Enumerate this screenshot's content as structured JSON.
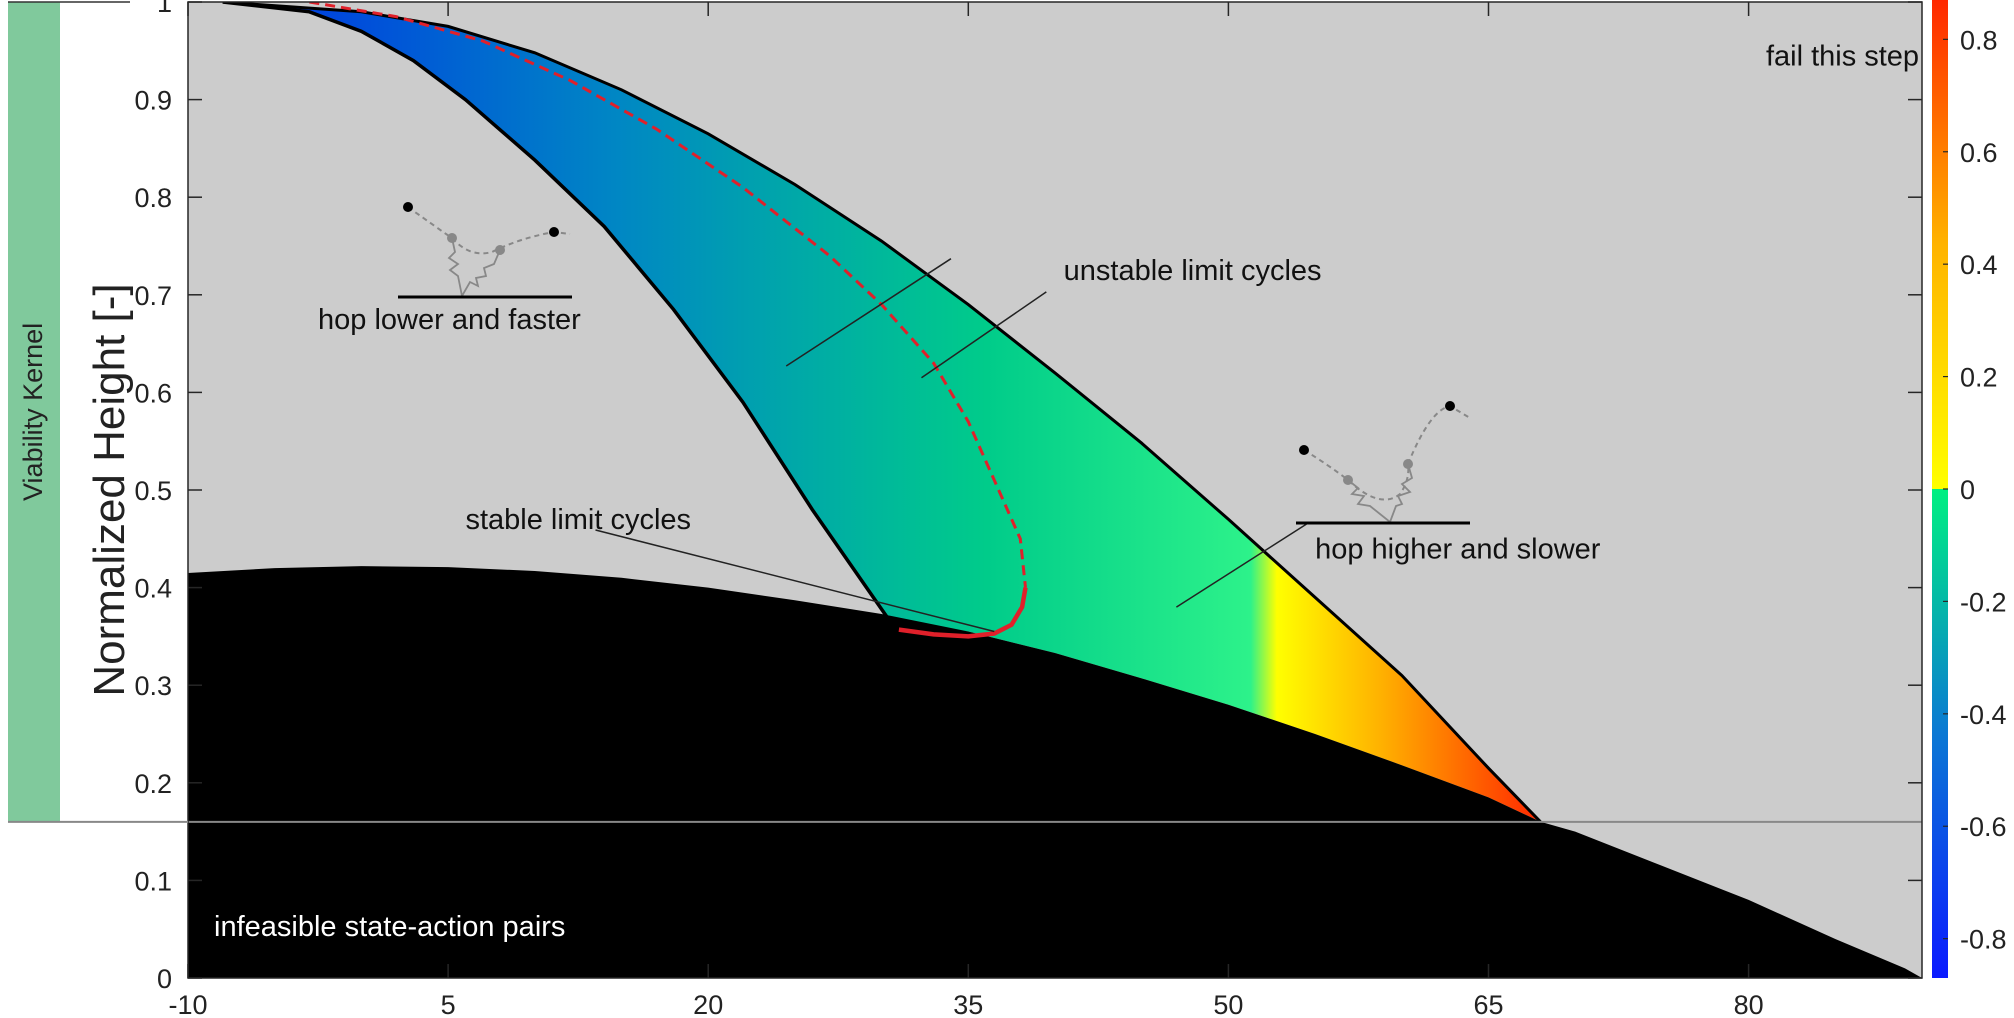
{
  "chart_data": {
    "type": "heatmap",
    "title": "",
    "xlabel": "",
    "ylabel": "Normalized Height [-]",
    "xlim": [
      -10,
      90
    ],
    "ylim": [
      0,
      1
    ],
    "x_ticks": [
      -10,
      5,
      20,
      35,
      50,
      65,
      80
    ],
    "y_ticks": [
      0,
      0.1,
      0.2,
      0.3,
      0.4,
      0.5,
      0.6,
      0.7,
      0.8,
      0.9,
      1
    ],
    "y_tick_labels": [
      "0",
      "0.1",
      "0.2",
      "0.3",
      "0.4",
      "0.5",
      "0.6",
      "0.7",
      "0.8",
      "0.9",
      "1"
    ],
    "colorbar": {
      "range": [
        -0.87,
        0.87
      ],
      "ticks": [
        0.8,
        0.6,
        0.4,
        0.2,
        0,
        -0.2,
        -0.4,
        -0.6,
        -0.8
      ],
      "tick_labels": [
        "0.8",
        "0.6",
        "0.4",
        "0.2",
        "0",
        "-0.2",
        "-0.4",
        "-0.6",
        "-0.8"
      ]
    },
    "viability_kernel": {
      "label": "Viability Kernel",
      "y_range": [
        0.16,
        1.0
      ],
      "color": "#80c99c"
    },
    "background_color": "#cccccc",
    "infeasible_color": "#000000",
    "infeasible_boundary": {
      "x": [
        -10,
        -5,
        0,
        5,
        10,
        15,
        20,
        25,
        30,
        35,
        40,
        45,
        50,
        55,
        60,
        65,
        68,
        70,
        75,
        80,
        85,
        89
      ],
      "y": [
        0.415,
        0.42,
        0.422,
        0.421,
        0.417,
        0.41,
        0.4,
        0.387,
        0.373,
        0.355,
        0.333,
        0.307,
        0.28,
        0.25,
        0.218,
        0.185,
        0.16,
        0.15,
        0.115,
        0.08,
        0.04,
        0.01
      ]
    },
    "region_upper_boundary": {
      "x": [
        -8,
        0,
        5,
        10,
        15,
        20,
        25,
        30,
        35,
        40,
        45,
        50,
        55,
        60,
        65,
        68
      ],
      "y": [
        1.0,
        0.99,
        0.975,
        0.948,
        0.91,
        0.865,
        0.813,
        0.755,
        0.69,
        0.62,
        0.548,
        0.47,
        0.39,
        0.31,
        0.215,
        0.16
      ]
    },
    "region_left_boundary": {
      "x": [
        -8,
        -3,
        0,
        3,
        6,
        10,
        14,
        18,
        22,
        26,
        30.5
      ],
      "y": [
        1.0,
        0.99,
        0.97,
        0.94,
        0.9,
        0.838,
        0.77,
        0.685,
        0.59,
        0.48,
        0.365
      ]
    },
    "stability_boundary": {
      "x": [
        -3,
        2,
        7,
        12,
        17,
        22,
        27,
        30,
        33,
        35,
        36.5,
        38,
        38.3
      ],
      "y": [
        1.0,
        0.985,
        0.96,
        0.92,
        0.87,
        0.81,
        0.74,
        0.69,
        0.63,
        0.57,
        0.51,
        0.45,
        0.4
      ]
    },
    "stable_limit_cycles": {
      "x": [
        31,
        33,
        35,
        36.5,
        37.5,
        38.1,
        38.3
      ],
      "y": [
        0.357,
        0.352,
        0.35,
        0.353,
        0.362,
        0.38,
        0.4
      ]
    },
    "annotations": [
      {
        "text": "fail this step",
        "x": 81,
        "y": 0.935
      },
      {
        "text": "unstable limit cycles",
        "x": 40.5,
        "y": 0.715
      },
      {
        "text": "hop lower and faster",
        "x": -2.5,
        "y": 0.665
      },
      {
        "text": "stable limit cycles",
        "x": 6,
        "y": 0.46
      },
      {
        "text": "hop higher and slower",
        "x": 55,
        "y": 0.43
      },
      {
        "text": "infeasible state-action pairs",
        "x": -8.5,
        "y": 0.043
      }
    ]
  }
}
